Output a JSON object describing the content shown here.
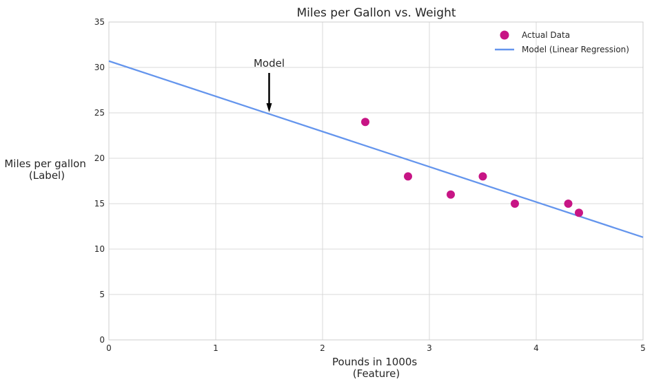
{
  "chart_data": {
    "type": "scatter",
    "title": "Miles per Gallon vs. Weight",
    "xlabel_lines": [
      "Pounds in 1000s",
      "(Feature)"
    ],
    "ylabel_lines": [
      "Miles per gallon",
      "(Label)"
    ],
    "xlim": [
      0,
      5
    ],
    "ylim": [
      0,
      35
    ],
    "x_ticks": [
      0,
      1,
      2,
      3,
      4,
      5
    ],
    "y_ticks": [
      0,
      5,
      10,
      15,
      20,
      25,
      30,
      35
    ],
    "grid": true,
    "legend_position": "top-right",
    "series": [
      {
        "name": "Actual Data",
        "kind": "scatter",
        "color": "#C71585",
        "x": [
          2.4,
          2.8,
          3.2,
          3.5,
          3.8,
          4.3,
          4.4
        ],
        "y": [
          24,
          18,
          16,
          18,
          15,
          15,
          14
        ]
      },
      {
        "name": "Model (Linear Regression)",
        "kind": "line",
        "color": "#6495ED",
        "x": [
          0,
          5
        ],
        "y": [
          30.7,
          11.3
        ]
      }
    ],
    "annotations": [
      {
        "text": "Model",
        "x": 1.5,
        "y": 25,
        "arrow": true
      }
    ]
  }
}
